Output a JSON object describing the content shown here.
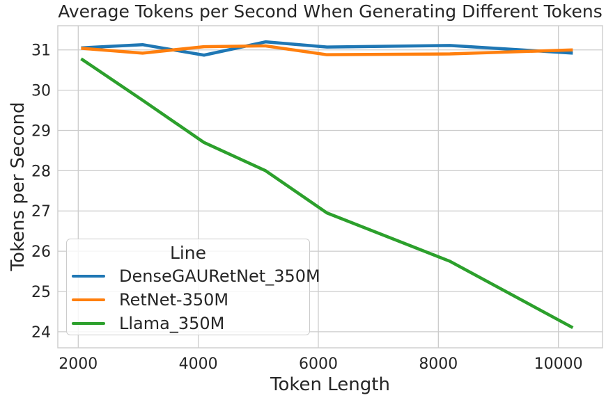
{
  "chart_data": {
    "type": "line",
    "title": "Average Tokens per Second When Generating Different Tokens",
    "xlabel": "Token Length",
    "ylabel": "Tokens per Second",
    "x": [
      2048,
      3072,
      4096,
      5120,
      6144,
      8192,
      10240
    ],
    "series": [
      {
        "name": "DenseGAURetNet_350M",
        "color": "#1f77b4",
        "values": [
          31.05,
          31.13,
          30.87,
          31.2,
          31.07,
          31.11,
          30.92
        ]
      },
      {
        "name": "RetNet-350M",
        "color": "#ff7f0e",
        "values": [
          31.04,
          30.92,
          31.08,
          31.1,
          30.88,
          30.9,
          31.0
        ]
      },
      {
        "name": "Llama_350M",
        "color": "#2ca02c",
        "values": [
          30.78,
          29.75,
          28.7,
          28.0,
          26.95,
          25.75,
          24.1
        ]
      }
    ],
    "xticks": [
      2000,
      4000,
      6000,
      8000,
      10000
    ],
    "yticks": [
      24,
      25,
      26,
      27,
      28,
      29,
      30,
      31
    ],
    "xlim": [
      1660,
      10735
    ],
    "ylim": [
      23.6,
      31.6
    ],
    "grid": true,
    "legend": {
      "title": "Line",
      "position": "lower left"
    },
    "style": {
      "grid_color": "#cccccc",
      "spine_color": "#cccccc",
      "text_color": "#262626",
      "background": "#ffffff",
      "line_width": 4.5
    }
  }
}
